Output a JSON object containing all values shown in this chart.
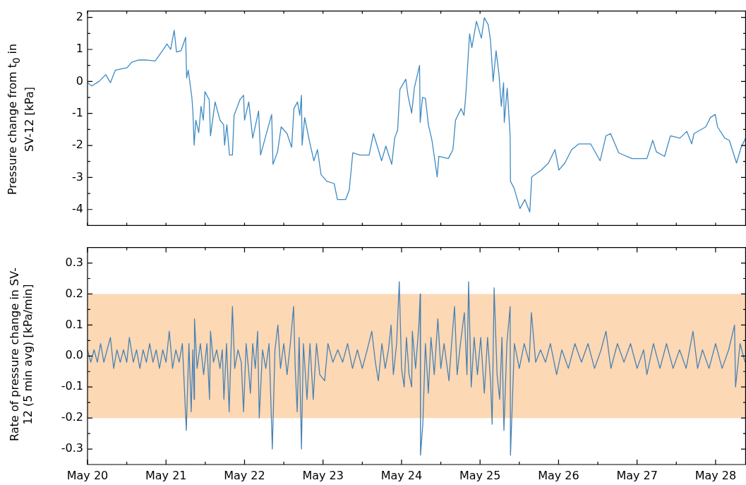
{
  "chart_data": [
    {
      "type": "line",
      "ylabel": "Pressure change from t$_{0}$ in SV-12 [kPa]",
      "tick_labels": "y",
      "xlim": [
        "--05-20T00:00",
        "--05-28T09:18"
      ],
      "xticks": [
        {
          "value": "--05-20",
          "label": null
        },
        {
          "value": "--05-20T12:00",
          "label": null
        },
        {
          "value": "--05-21",
          "label": null
        },
        {
          "value": "--05-21T12:00",
          "label": null
        },
        {
          "value": "--05-22",
          "label": null
        },
        {
          "value": "--05-22T12:00",
          "label": null
        },
        {
          "value": "--05-23",
          "label": null
        },
        {
          "value": "--05-23T12:00",
          "label": null
        },
        {
          "value": "--05-24",
          "label": null
        },
        {
          "value": "--05-24T12:00",
          "label": null
        },
        {
          "value": "--05-25",
          "label": null
        },
        {
          "value": "--05-25T12:00",
          "label": null
        },
        {
          "value": "--05-26",
          "label": null
        },
        {
          "value": "--05-26T12:00",
          "label": null
        },
        {
          "value": "--05-27",
          "label": null
        },
        {
          "value": "--05-27T12:00",
          "label": null
        },
        {
          "value": "--05-28",
          "label": null
        }
      ],
      "ylim": [
        -4.5,
        2.2
      ],
      "yticks": [
        -4,
        {
          "value": -3.5,
          "label": null
        },
        -3,
        {
          "value": -2.5,
          "label": null
        },
        -2,
        {
          "value": -1.5,
          "label": null
        },
        -1,
        {
          "value": -0.5,
          "label": null
        },
        0,
        {
          "value": 0.5,
          "label": null
        },
        1,
        {
          "value": 1.5,
          "label": null
        },
        2
      ],
      "grid": false,
      "marker": "none",
      "series": [
        {
          "color": "#3e8ac2",
          "x": [
            "--05-20T00:00",
            "--05-20T01:18",
            "--05-20T03:30",
            "--05-20T05:36",
            "--05-20T07:00",
            "--05-20T08:30",
            "--05-20T12:06",
            "--05-20T13:30",
            "--05-20T15:42",
            "--05-20T17:48",
            "--05-20T20:42",
            "--05-20T22:54",
            "--05-21T00:18",
            "--05-21T01:24",
            "--05-21T02:30",
            "--05-21T03:12",
            "--05-21T04:36",
            "--05-21T06:00",
            "--05-21T06:18",
            "--05-21T06:48",
            "--05-21T07:54",
            "--05-21T08:12",
            "--05-21T08:36",
            "--05-21T09:06",
            "--05-21T10:00",
            "--05-21T10:42",
            "--05-21T11:24",
            "--05-21T11:54",
            "--05-21T13:12",
            "--05-21T13:36",
            "--05-21T15:00",
            "--05-21T16:30",
            "--05-21T17:36",
            "--05-21T17:54",
            "--05-21T18:36",
            "--05-21T19:24",
            "--05-21T20:18",
            "--05-21T20:48",
            "--05-21T22:36",
            "--05-21T23:42",
            "--05-22T00:00",
            "--05-22T01:18",
            "--05-22T02:30",
            "--05-22T04:18",
            "--05-22T04:54",
            "--05-22T06:30",
            "--05-22T08:18",
            "--05-22T08:42",
            "--05-22T10:06",
            "--05-22T11:12",
            "--05-22T13:00",
            "--05-22T14:24",
            "--05-22T15:06",
            "--05-22T16:12",
            "--05-22T16:54",
            "--05-22T17:24",
            "--05-22T17:36",
            "--05-22T18:24",
            "--05-22T19:48",
            "--05-22T21:12",
            "--05-22T22:18",
            "--05-22T23:24",
            "--05-23T01:12",
            "--05-23T03:24",
            "--05-23T04:24",
            "--05-23T06:54",
            "--05-23T08:00",
            "--05-23T09:06",
            "--05-23T11:18",
            "--05-23T14:06",
            "--05-23T15:24",
            "--05-23T16:42",
            "--05-23T17:54",
            "--05-23T19:12",
            "--05-23T21:00",
            "--05-23T21:54",
            "--05-23T22:48",
            "--05-23T23:30",
            "--05-24T01:18",
            "--05-24T02:00",
            "--05-24T03:06",
            "--05-24T03:54",
            "--05-24T05:30",
            "--05-24T05:42",
            "--05-24T06:24",
            "--05-24T07:18",
            "--05-24T08:12",
            "--05-24T09:18",
            "--05-24T10:54",
            "--05-24T11:24",
            "--05-24T14:18",
            "--05-24T15:42",
            "--05-24T16:30",
            "--05-24T18:12",
            "--05-24T19:06",
            "--05-24T19:42",
            "--05-24T20:48",
            "--05-24T21:30",
            "--05-24T22:54",
            "--05-25T00:24",
            "--05-25T01:18",
            "--05-25T02:30",
            "--05-25T03:12",
            "--05-25T04:00",
            "--05-25T04:54",
            "--05-25T05:48",
            "--05-25T06:30",
            "--05-25T07:12",
            "--05-25T07:24",
            "--05-25T08:18",
            "--05-25T09:12",
            "--05-25T09:18",
            "--05-25T10:24",
            "--05-25T12:12",
            "--05-25T13:42",
            "--05-25T15:12",
            "--05-25T15:48",
            "--05-25T18:42",
            "--05-25T20:54",
            "--05-25T22:54",
            "--05-26T00:06",
            "--05-26T01:54",
            "--05-26T04:00",
            "--05-26T06:12",
            "--05-26T09:48",
            "--05-26T12:42",
            "--05-26T14:30",
            "--05-26T15:54",
            "--05-26T18:24",
            "--05-26T22:24",
            "--05-27T03:00",
            "--05-27T04:48",
            "--05-27T05:54",
            "--05-27T08:24",
            "--05-27T10:12",
            "--05-27T13:06",
            "--05-27T15:12",
            "--05-27T16:42",
            "--05-27T17:24",
            "--05-27T21:00",
            "--05-27T22:24",
            "--05-27T23:54",
            "--05-28T00:36",
            "--05-28T02:48",
            "--05-28T04:12",
            "--05-28T06:24",
            "--05-28T07:48",
            "--05-28T09:12"
          ],
          "values": [
            -0.04,
            -0.14,
            0,
            0.21,
            -0.04,
            0.35,
            0.43,
            0.6,
            0.67,
            0.67,
            0.64,
            0.96,
            1.17,
            1.0,
            1.6,
            0.92,
            0.96,
            1.38,
            0.11,
            0.35,
            -0.5,
            -0.92,
            -1.99,
            -1.21,
            -1.6,
            -0.78,
            -1.21,
            -0.32,
            -0.57,
            -1.7,
            -0.64,
            -1.21,
            -1.35,
            -1.99,
            -1.35,
            -2.3,
            -2.3,
            -1.06,
            -0.57,
            -0.43,
            -1.21,
            -0.64,
            -1.77,
            -0.92,
            -2.3,
            -1.7,
            -1.03,
            -2.59,
            -2.2,
            -1.42,
            -1.63,
            -2.06,
            -0.85,
            -0.64,
            -1.06,
            -0.43,
            -1.99,
            -1.13,
            -1.84,
            -2.48,
            -2.13,
            -2.91,
            -3.12,
            -3.19,
            -3.69,
            -3.69,
            -3.4,
            -2.23,
            -2.3,
            -2.3,
            -1.63,
            -2.06,
            -2.48,
            -2.02,
            -2.59,
            -1.77,
            -1.52,
            -0.25,
            0.07,
            -0.46,
            -0.99,
            -0.21,
            0.5,
            -1.28,
            -0.5,
            -0.53,
            -1.35,
            -1.84,
            -2.98,
            -2.34,
            -2.41,
            -2.13,
            -1.21,
            -0.85,
            -1.06,
            -0.35,
            1.49,
            1.06,
            1.88,
            1.35,
            1.99,
            1.77,
            1.28,
            0.0,
            0.96,
            0.21,
            -0.78,
            -0.04,
            -1.28,
            -0.21,
            -1.7,
            -3.12,
            -3.33,
            -3.97,
            -3.69,
            -4.08,
            -2.98,
            -2.77,
            -2.55,
            -2.13,
            -2.77,
            -2.55,
            -2.13,
            -1.95,
            -1.95,
            -2.48,
            -1.7,
            -1.63,
            -2.23,
            -2.41,
            -2.41,
            -1.84,
            -2.2,
            -2.34,
            -1.7,
            -1.77,
            -1.56,
            -1.95,
            -1.63,
            -1.42,
            -1.13,
            -1.03,
            -1.42,
            -1.77,
            -1.84,
            -2.55,
            -2.06,
            -1.77
          ]
        }
      ]
    },
    {
      "type": "line",
      "ylabel": "Rate of pressure change in SV-12 (5 min avg) [kPa/min]",
      "xlim": [
        "--05-20T00:00",
        "--05-28T09:18"
      ],
      "xticks": [
        {
          "value": "--05-20",
          "label": "May 20"
        },
        {
          "value": "--05-20T12:00",
          "label": null
        },
        {
          "value": "--05-21",
          "label": "May 21"
        },
        {
          "value": "--05-21T12:00",
          "label": null
        },
        {
          "value": "--05-22",
          "label": "May 22"
        },
        {
          "value": "--05-22T12:00",
          "label": null
        },
        {
          "value": "--05-23",
          "label": "May 23"
        },
        {
          "value": "--05-23T12:00",
          "label": null
        },
        {
          "value": "--05-24",
          "label": "May 24"
        },
        {
          "value": "--05-24T12:00",
          "label": null
        },
        {
          "value": "--05-25",
          "label": "May 25"
        },
        {
          "value": "--05-25T12:00",
          "label": null
        },
        {
          "value": "--05-26",
          "label": "May 26"
        },
        {
          "value": "--05-26T12:00",
          "label": null
        },
        {
          "value": "--05-27",
          "label": "May 27"
        },
        {
          "value": "--05-27T12:00",
          "label": null
        },
        {
          "value": "--05-28",
          "label": "May 28"
        }
      ],
      "ylim": [
        -0.35,
        0.35
      ],
      "yticks": [
        -0.3,
        {
          "value": -0.25,
          "label": null
        },
        -0.2,
        {
          "value": -0.15,
          "label": null
        },
        -0.1,
        {
          "value": -0.05,
          "label": null
        },
        {
          "value": 0,
          "label": "0.0"
        },
        {
          "value": 0.05,
          "label": null
        },
        0.1,
        {
          "value": 0.15,
          "label": null
        },
        0.2,
        {
          "value": 0.25,
          "label": null
        },
        0.3
      ],
      "grid": false,
      "marker": "none",
      "bands": [
        {
          "axis": "y",
          "from": -0.2,
          "to": 0.2,
          "color": "#fdd8b5"
        }
      ],
      "series": [
        {
          "color": "#4682b4",
          "x": [
            "--05-20T00:00",
            "--05-20T01:00",
            "--05-20T02:00",
            "--05-20T03:00",
            "--05-20T04:00",
            "--05-20T05:00",
            "--05-20T06:00",
            "--05-20T07:00",
            "--05-20T08:00",
            "--05-20T09:00",
            "--05-20T10:00",
            "--05-20T11:00",
            "--05-20T12:00",
            "--05-20T12:48",
            "--05-20T14:00",
            "--05-20T15:00",
            "--05-20T16:00",
            "--05-20T17:00",
            "--05-20T18:00",
            "--05-20T19:00",
            "--05-20T20:00",
            "--05-20T21:00",
            "--05-20T22:00",
            "--05-20T23:00",
            "--05-21T00:00",
            "--05-21T01:00",
            "--05-21T02:00",
            "--05-21T03:00",
            "--05-21T04:00",
            "--05-21T05:00",
            "--05-21T06:12",
            "--05-21T07:00",
            "--05-21T07:42",
            "--05-21T08:12",
            "--05-21T08:36",
            "--05-21T08:42",
            "--05-21T09:30",
            "--05-21T10:30",
            "--05-21T11:30",
            "--05-21T12:30",
            "--05-21T13:18",
            "--05-21T13:36",
            "--05-21T14:30",
            "--05-21T15:30",
            "--05-21T16:30",
            "--05-21T17:12",
            "--05-21T17:42",
            "--05-21T18:30",
            "--05-21T19:18",
            "--05-21T20:18",
            "--05-21T21:00",
            "--05-21T22:00",
            "--05-21T23:00",
            "--05-21T23:42",
            "--05-22T00:30",
            "--05-22T01:12",
            "--05-22T01:48",
            "--05-22T02:30",
            "--05-22T03:18",
            "--05-22T04:00",
            "--05-22T04:30",
            "--05-22T05:30",
            "--05-22T06:30",
            "--05-22T07:30",
            "--05-22T08:30",
            "--05-22T09:18",
            "--05-22T10:12",
            "--05-22T11:00",
            "--05-22T12:00",
            "--05-22T13:00",
            "--05-22T14:00",
            "--05-22T15:00",
            "--05-22T15:30",
            "--05-22T16:06",
            "--05-22T16:42",
            "--05-22T17:24",
            "--05-22T18:00",
            "--05-22T19:06",
            "--05-22T20:00",
            "--05-22T21:00",
            "--05-22T22:00",
            "--05-22T23:00",
            "--05-23T00:30",
            "--05-23T01:30",
            "--05-23T03:00",
            "--05-23T04:30",
            "--05-23T06:00",
            "--05-23T07:30",
            "--05-23T09:00",
            "--05-23T10:30",
            "--05-23T12:00",
            "--05-23T13:30",
            "--05-23T14:54",
            "--05-23T16:00",
            "--05-23T16:54",
            "--05-23T18:00",
            "--05-23T19:00",
            "--05-23T20:00",
            "--05-23T20:48",
            "--05-23T21:30",
            "--05-23T22:30",
            "--05-23T23:18",
            "--05-24T00:00",
            "--05-24T00:48",
            "--05-24T01:30",
            "--05-24T02:18",
            "--05-24T03:06",
            "--05-24T03:18",
            "--05-24T04:18",
            "--05-24T05:18",
            "--05-24T05:42",
            "--05-24T05:48",
            "--05-24T06:30",
            "--05-24T07:18",
            "--05-24T08:12",
            "--05-24T09:00",
            "--05-24T10:00",
            "--05-24T11:06",
            "--05-24T12:00",
            "--05-24T13:00",
            "--05-24T14:30",
            "--05-24T15:18",
            "--05-24T16:12",
            "--05-24T17:00",
            "--05-24T18:00",
            "--05-24T19:12",
            "--05-24T20:00",
            "--05-24T20:30",
            "--05-24T21:18",
            "--05-24T22:12",
            "--05-24T23:12",
            "--05-25T00:12",
            "--05-25T01:18",
            "--05-25T02:18",
            "--05-25T03:12",
            "--05-25T03:42",
            "--05-25T04:18",
            "--05-25T05:12",
            "--05-25T06:00",
            "--05-25T06:42",
            "--05-25T07:18",
            "--05-25T08:12",
            "--05-25T09:12",
            "--05-25T09:18",
            "--05-25T10:30",
            "--05-25T12:00",
            "--05-25T13:30",
            "--05-25T15:00",
            "--05-25T15:42",
            "--05-25T17:00",
            "--05-25T18:30",
            "--05-25T20:00",
            "--05-25T21:30",
            "--05-25T23:24",
            "--05-26T01:00",
            "--05-26T03:00",
            "--05-26T05:00",
            "--05-26T07:00",
            "--05-26T09:00",
            "--05-26T11:00",
            "--05-26T13:00",
            "--05-26T14:30",
            "--05-26T16:00",
            "--05-26T18:00",
            "--05-26T20:00",
            "--05-26T22:00",
            "--05-27T00:00",
            "--05-27T02:00",
            "--05-27T03:00",
            "--05-27T05:00",
            "--05-27T07:00",
            "--05-27T09:00",
            "--05-27T11:00",
            "--05-27T13:00",
            "--05-27T15:00",
            "--05-27T17:06",
            "--05-27T18:30",
            "--05-27T20:00",
            "--05-27T22:00",
            "--05-28T00:00",
            "--05-28T02:00",
            "--05-28T04:00",
            "--05-28T05:48",
            "--05-28T06:06",
            "--05-28T07:30",
            "--05-28T09:00"
          ],
          "values": [
            0.02,
            -0.02,
            0.02,
            -0.02,
            0.04,
            -0.02,
            0.02,
            0.06,
            -0.04,
            0.02,
            -0.02,
            0.02,
            -0.02,
            0.06,
            -0.02,
            0.02,
            -0.04,
            0.02,
            -0.02,
            0.04,
            -0.02,
            0.02,
            -0.04,
            0.02,
            -0.02,
            0.08,
            -0.04,
            0.02,
            -0.02,
            0.04,
            -0.24,
            0.04,
            -0.18,
            0.02,
            -0.14,
            0.12,
            -0.04,
            0.04,
            -0.06,
            0.04,
            -0.14,
            0.08,
            -0.02,
            0.02,
            -0.04,
            0.02,
            -0.14,
            0.04,
            -0.18,
            0.16,
            -0.04,
            0.02,
            -0.02,
            -0.18,
            0.04,
            -0.04,
            -0.12,
            0.04,
            -0.04,
            0.08,
            -0.2,
            0.02,
            -0.04,
            0.04,
            -0.3,
            0.02,
            0.1,
            -0.04,
            0.04,
            -0.06,
            0.04,
            0.16,
            -0.04,
            -0.18,
            0.06,
            -0.3,
            0.04,
            -0.14,
            0.04,
            -0.14,
            0.04,
            -0.06,
            -0.08,
            0.04,
            -0.02,
            0.02,
            -0.02,
            0.04,
            -0.04,
            0.02,
            -0.04,
            0.02,
            0.08,
            -0.02,
            -0.08,
            0.04,
            -0.04,
            0.02,
            0.1,
            -0.06,
            0.04,
            0.24,
            -0.04,
            -0.1,
            0.06,
            -0.06,
            -0.1,
            0.08,
            -0.04,
            0.1,
            0.2,
            -0.32,
            -0.22,
            0.04,
            -0.12,
            0.06,
            -0.06,
            0.12,
            -0.04,
            0.04,
            -0.08,
            0.04,
            0.16,
            -0.06,
            0.04,
            0.14,
            -0.06,
            0.24,
            -0.1,
            0.06,
            -0.06,
            0.06,
            -0.12,
            0.06,
            -0.08,
            -0.22,
            0.22,
            -0.06,
            -0.14,
            0.06,
            -0.24,
            0.04,
            0.16,
            -0.32,
            0.04,
            -0.04,
            0.04,
            -0.02,
            0.14,
            -0.02,
            0.02,
            -0.02,
            0.04,
            -0.06,
            0.02,
            -0.04,
            0.04,
            -0.02,
            0.04,
            -0.04,
            0.02,
            0.08,
            -0.04,
            0.04,
            -0.02,
            0.04,
            -0.04,
            0.02,
            -0.06,
            0.04,
            -0.04,
            0.04,
            -0.04,
            0.02,
            -0.04,
            0.08,
            -0.04,
            0.02,
            -0.04,
            0.04,
            -0.04,
            0.02,
            0.1,
            -0.1,
            0.04,
            -0.02
          ]
        }
      ]
    }
  ]
}
